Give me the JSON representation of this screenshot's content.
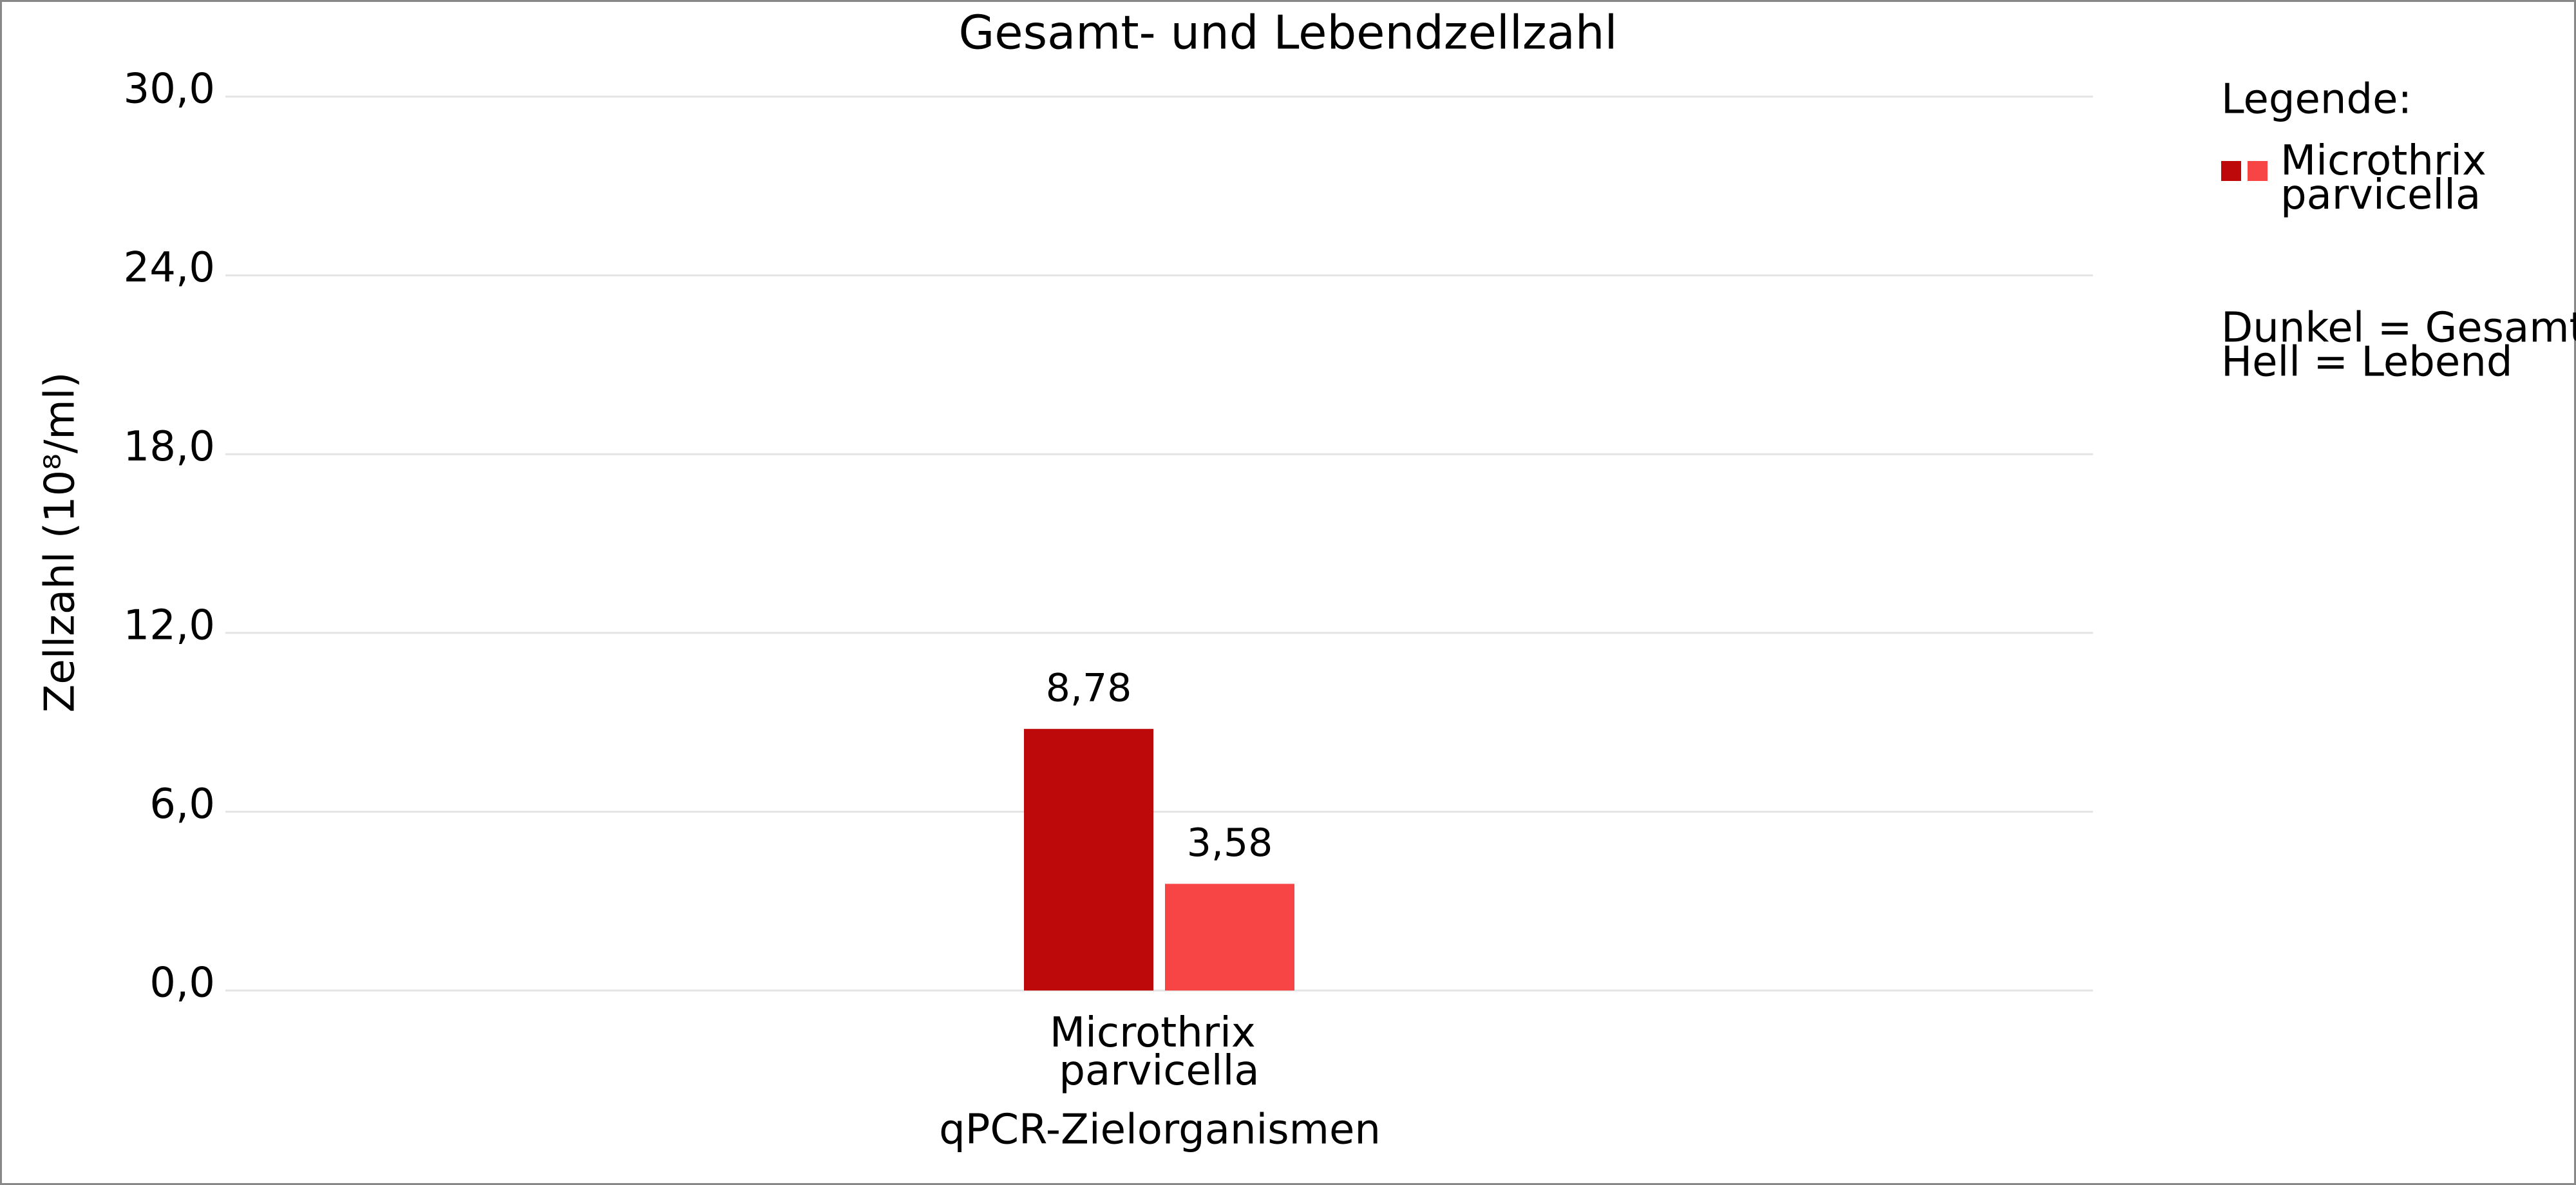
{
  "chart_data": {
    "type": "bar",
    "title": "Gesamt- und Lebendzellzahl",
    "x_label": "qPCR-Zielorganismen",
    "y_label": "Zellzahl (10⁸/ml)",
    "categories": [
      "Microthrix parvicella"
    ],
    "series": [
      {
        "color": "#bd0909",
        "values": [
          8.78
        ],
        "value_labels": [
          "8,78"
        ]
      },
      {
        "color": "#f74546",
        "values": [
          3.58
        ],
        "value_labels": [
          "3,58"
        ]
      }
    ],
    "ylim": [
      0,
      30
    ],
    "yticks": [
      {
        "value": 0,
        "label": "0,0"
      },
      {
        "value": 6,
        "label": "6,0"
      },
      {
        "value": 12,
        "label": "12,0"
      },
      {
        "value": 18,
        "label": "18,0"
      },
      {
        "value": 24,
        "label": "24,0"
      },
      {
        "value": 30,
        "label": "30,0"
      }
    ],
    "grid": true,
    "legend": {
      "title": "Legende:",
      "entries": [
        "Microthrix parvicella"
      ],
      "notes": [
        "Dunkel = Gesamt",
        "Hell = Lebend"
      ]
    }
  }
}
